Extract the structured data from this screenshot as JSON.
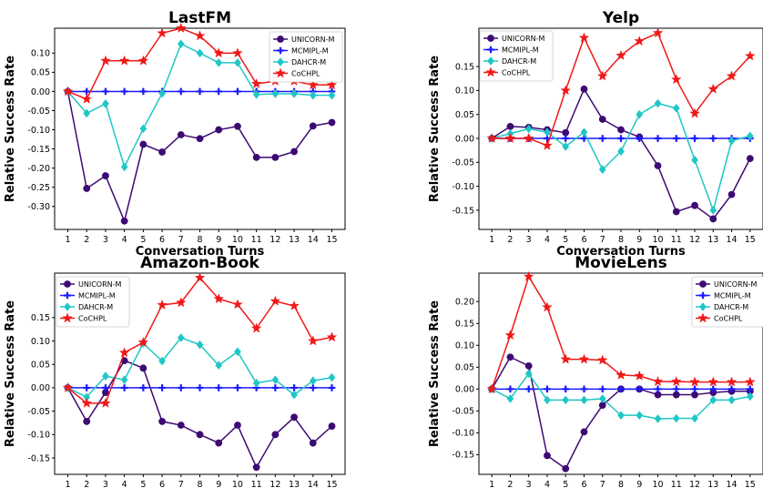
{
  "chart_data": [
    {
      "type": "line",
      "title": "LastFM",
      "xlabel": "Conversation Turns",
      "ylabel": "Relative Success Rate",
      "x": [
        1,
        2,
        3,
        4,
        5,
        6,
        7,
        8,
        9,
        10,
        11,
        12,
        13,
        14,
        15
      ],
      "ylim": [
        -0.36,
        0.165
      ],
      "yticks": [
        -0.3,
        -0.25,
        -0.2,
        -0.15,
        -0.1,
        -0.05,
        0.0,
        0.05,
        0.1
      ],
      "legend_position": "top-right",
      "series": [
        {
          "name": "UNICORN-M",
          "color": "#3d0a73",
          "marker": "circle",
          "values": [
            0.0,
            -0.253,
            -0.22,
            -0.338,
            -0.138,
            -0.158,
            -0.113,
            -0.123,
            -0.1,
            -0.091,
            -0.172,
            -0.172,
            -0.157,
            -0.09,
            -0.081
          ]
        },
        {
          "name": "MCMIPL-M",
          "color": "#1a1aff",
          "marker": "plus",
          "values": [
            0,
            0,
            0,
            0,
            0,
            0,
            0,
            0,
            0,
            0,
            0,
            0,
            0,
            0,
            0
          ]
        },
        {
          "name": "DAHCR-M",
          "color": "#1fc6c6",
          "marker": "diamond",
          "values": [
            0.0,
            -0.057,
            -0.032,
            -0.197,
            -0.097,
            -0.005,
            0.124,
            0.1,
            0.075,
            0.075,
            -0.008,
            -0.006,
            -0.006,
            -0.01,
            -0.01
          ]
        },
        {
          "name": "CoCHPL",
          "color": "#f01818",
          "marker": "star",
          "values": [
            0.0,
            -0.02,
            0.08,
            0.08,
            0.08,
            0.152,
            0.165,
            0.145,
            0.1,
            0.1,
            0.02,
            0.027,
            0.027,
            0.017,
            0.017
          ]
        }
      ]
    },
    {
      "type": "line",
      "title": "Yelp",
      "xlabel": "Conversation Turns",
      "ylabel": "Relative Success Rate",
      "x": [
        1,
        2,
        3,
        4,
        5,
        6,
        7,
        8,
        9,
        10,
        11,
        12,
        13,
        14,
        15
      ],
      "ylim": [
        -0.19,
        0.23
      ],
      "yticks": [
        -0.15,
        -0.1,
        -0.05,
        0.0,
        0.05,
        0.1,
        0.15
      ],
      "legend_position": "top-left",
      "series": [
        {
          "name": "UNICORN-M",
          "color": "#3d0a73",
          "marker": "circle",
          "values": [
            0.0,
            0.025,
            0.023,
            0.018,
            0.012,
            0.103,
            0.04,
            0.018,
            0.003,
            -0.057,
            -0.153,
            -0.14,
            -0.168,
            -0.117,
            -0.042
          ]
        },
        {
          "name": "MCMIPL-M",
          "color": "#1a1aff",
          "marker": "plus",
          "values": [
            0,
            0,
            0,
            0,
            0,
            0,
            0,
            0,
            0,
            0,
            0,
            0,
            0,
            0,
            0
          ]
        },
        {
          "name": "DAHCR-M",
          "color": "#1fc6c6",
          "marker": "diamond",
          "values": [
            0.0,
            0.01,
            0.02,
            0.013,
            -0.017,
            0.013,
            -0.065,
            -0.027,
            0.05,
            0.073,
            0.063,
            -0.045,
            -0.15,
            -0.005,
            0.005
          ]
        },
        {
          "name": "CoCHPL",
          "color": "#f01818",
          "marker": "star",
          "values": [
            0.0,
            0.0,
            0.0,
            -0.015,
            0.1,
            0.21,
            0.13,
            0.173,
            0.203,
            0.22,
            0.123,
            0.052,
            0.103,
            0.13,
            0.172
          ]
        }
      ]
    },
    {
      "type": "line",
      "title": "Amazon-Book",
      "xlabel": "Conversation Turns",
      "ylabel": "Relative Success Rate",
      "x": [
        1,
        2,
        3,
        4,
        5,
        6,
        7,
        8,
        9,
        10,
        11,
        12,
        13,
        14,
        15
      ],
      "ylim": [
        -0.185,
        0.245
      ],
      "yticks": [
        -0.15,
        -0.1,
        -0.05,
        0.0,
        0.05,
        0.1,
        0.15
      ],
      "legend_position": "top-left",
      "series": [
        {
          "name": "UNICORN-M",
          "color": "#3d0a73",
          "marker": "circle",
          "values": [
            0.0,
            -0.072,
            -0.01,
            0.058,
            0.042,
            -0.072,
            -0.08,
            -0.1,
            -0.118,
            -0.08,
            -0.17,
            -0.1,
            -0.063,
            -0.118,
            -0.082
          ]
        },
        {
          "name": "MCMIPL-M",
          "color": "#1a1aff",
          "marker": "plus",
          "values": [
            0,
            0,
            0,
            0,
            0,
            0,
            0,
            0,
            0,
            0,
            0,
            0,
            0,
            0,
            0
          ]
        },
        {
          "name": "DAHCR-M",
          "color": "#1fc6c6",
          "marker": "diamond",
          "values": [
            0.0,
            -0.02,
            0.025,
            0.017,
            0.095,
            0.057,
            0.107,
            0.092,
            0.048,
            0.077,
            0.01,
            0.017,
            -0.015,
            0.015,
            0.022
          ]
        },
        {
          "name": "CoCHPL",
          "color": "#f01818",
          "marker": "star",
          "values": [
            0.0,
            -0.033,
            -0.033,
            0.075,
            0.097,
            0.177,
            0.182,
            0.235,
            0.19,
            0.178,
            0.127,
            0.185,
            0.175,
            0.1,
            0.108
          ]
        }
      ]
    },
    {
      "type": "line",
      "title": "MovieLens",
      "xlabel": "Conversation Turns",
      "ylabel": "Relative Success Rate",
      "x": [
        1,
        2,
        3,
        4,
        5,
        6,
        7,
        8,
        9,
        10,
        11,
        12,
        13,
        14,
        15
      ],
      "ylim": [
        -0.195,
        0.265
      ],
      "yticks": [
        -0.15,
        -0.1,
        -0.05,
        0.0,
        0.05,
        0.1,
        0.15,
        0.2
      ],
      "legend_position": "top-right",
      "series": [
        {
          "name": "UNICORN-M",
          "color": "#3d0a73",
          "marker": "circle",
          "values": [
            0.0,
            0.073,
            0.053,
            -0.152,
            -0.182,
            -0.098,
            -0.037,
            0.0,
            0.0,
            -0.013,
            -0.013,
            -0.013,
            -0.008,
            -0.005,
            -0.005
          ]
        },
        {
          "name": "MCMIPL-M",
          "color": "#1a1aff",
          "marker": "plus",
          "values": [
            0,
            0,
            0,
            0,
            0,
            0,
            0,
            0,
            0,
            0,
            0,
            0,
            0,
            0,
            0
          ]
        },
        {
          "name": "DAHCR-M",
          "color": "#1fc6c6",
          "marker": "diamond",
          "values": [
            0.0,
            -0.022,
            0.035,
            -0.025,
            -0.025,
            -0.025,
            -0.022,
            -0.06,
            -0.06,
            -0.068,
            -0.067,
            -0.067,
            -0.025,
            -0.025,
            -0.017
          ]
        },
        {
          "name": "CoCHPL",
          "color": "#f01818",
          "marker": "star",
          "values": [
            0.0,
            0.123,
            0.257,
            0.187,
            0.068,
            0.068,
            0.066,
            0.032,
            0.03,
            0.017,
            0.017,
            0.016,
            0.016,
            0.016,
            0.016
          ]
        }
      ]
    }
  ]
}
